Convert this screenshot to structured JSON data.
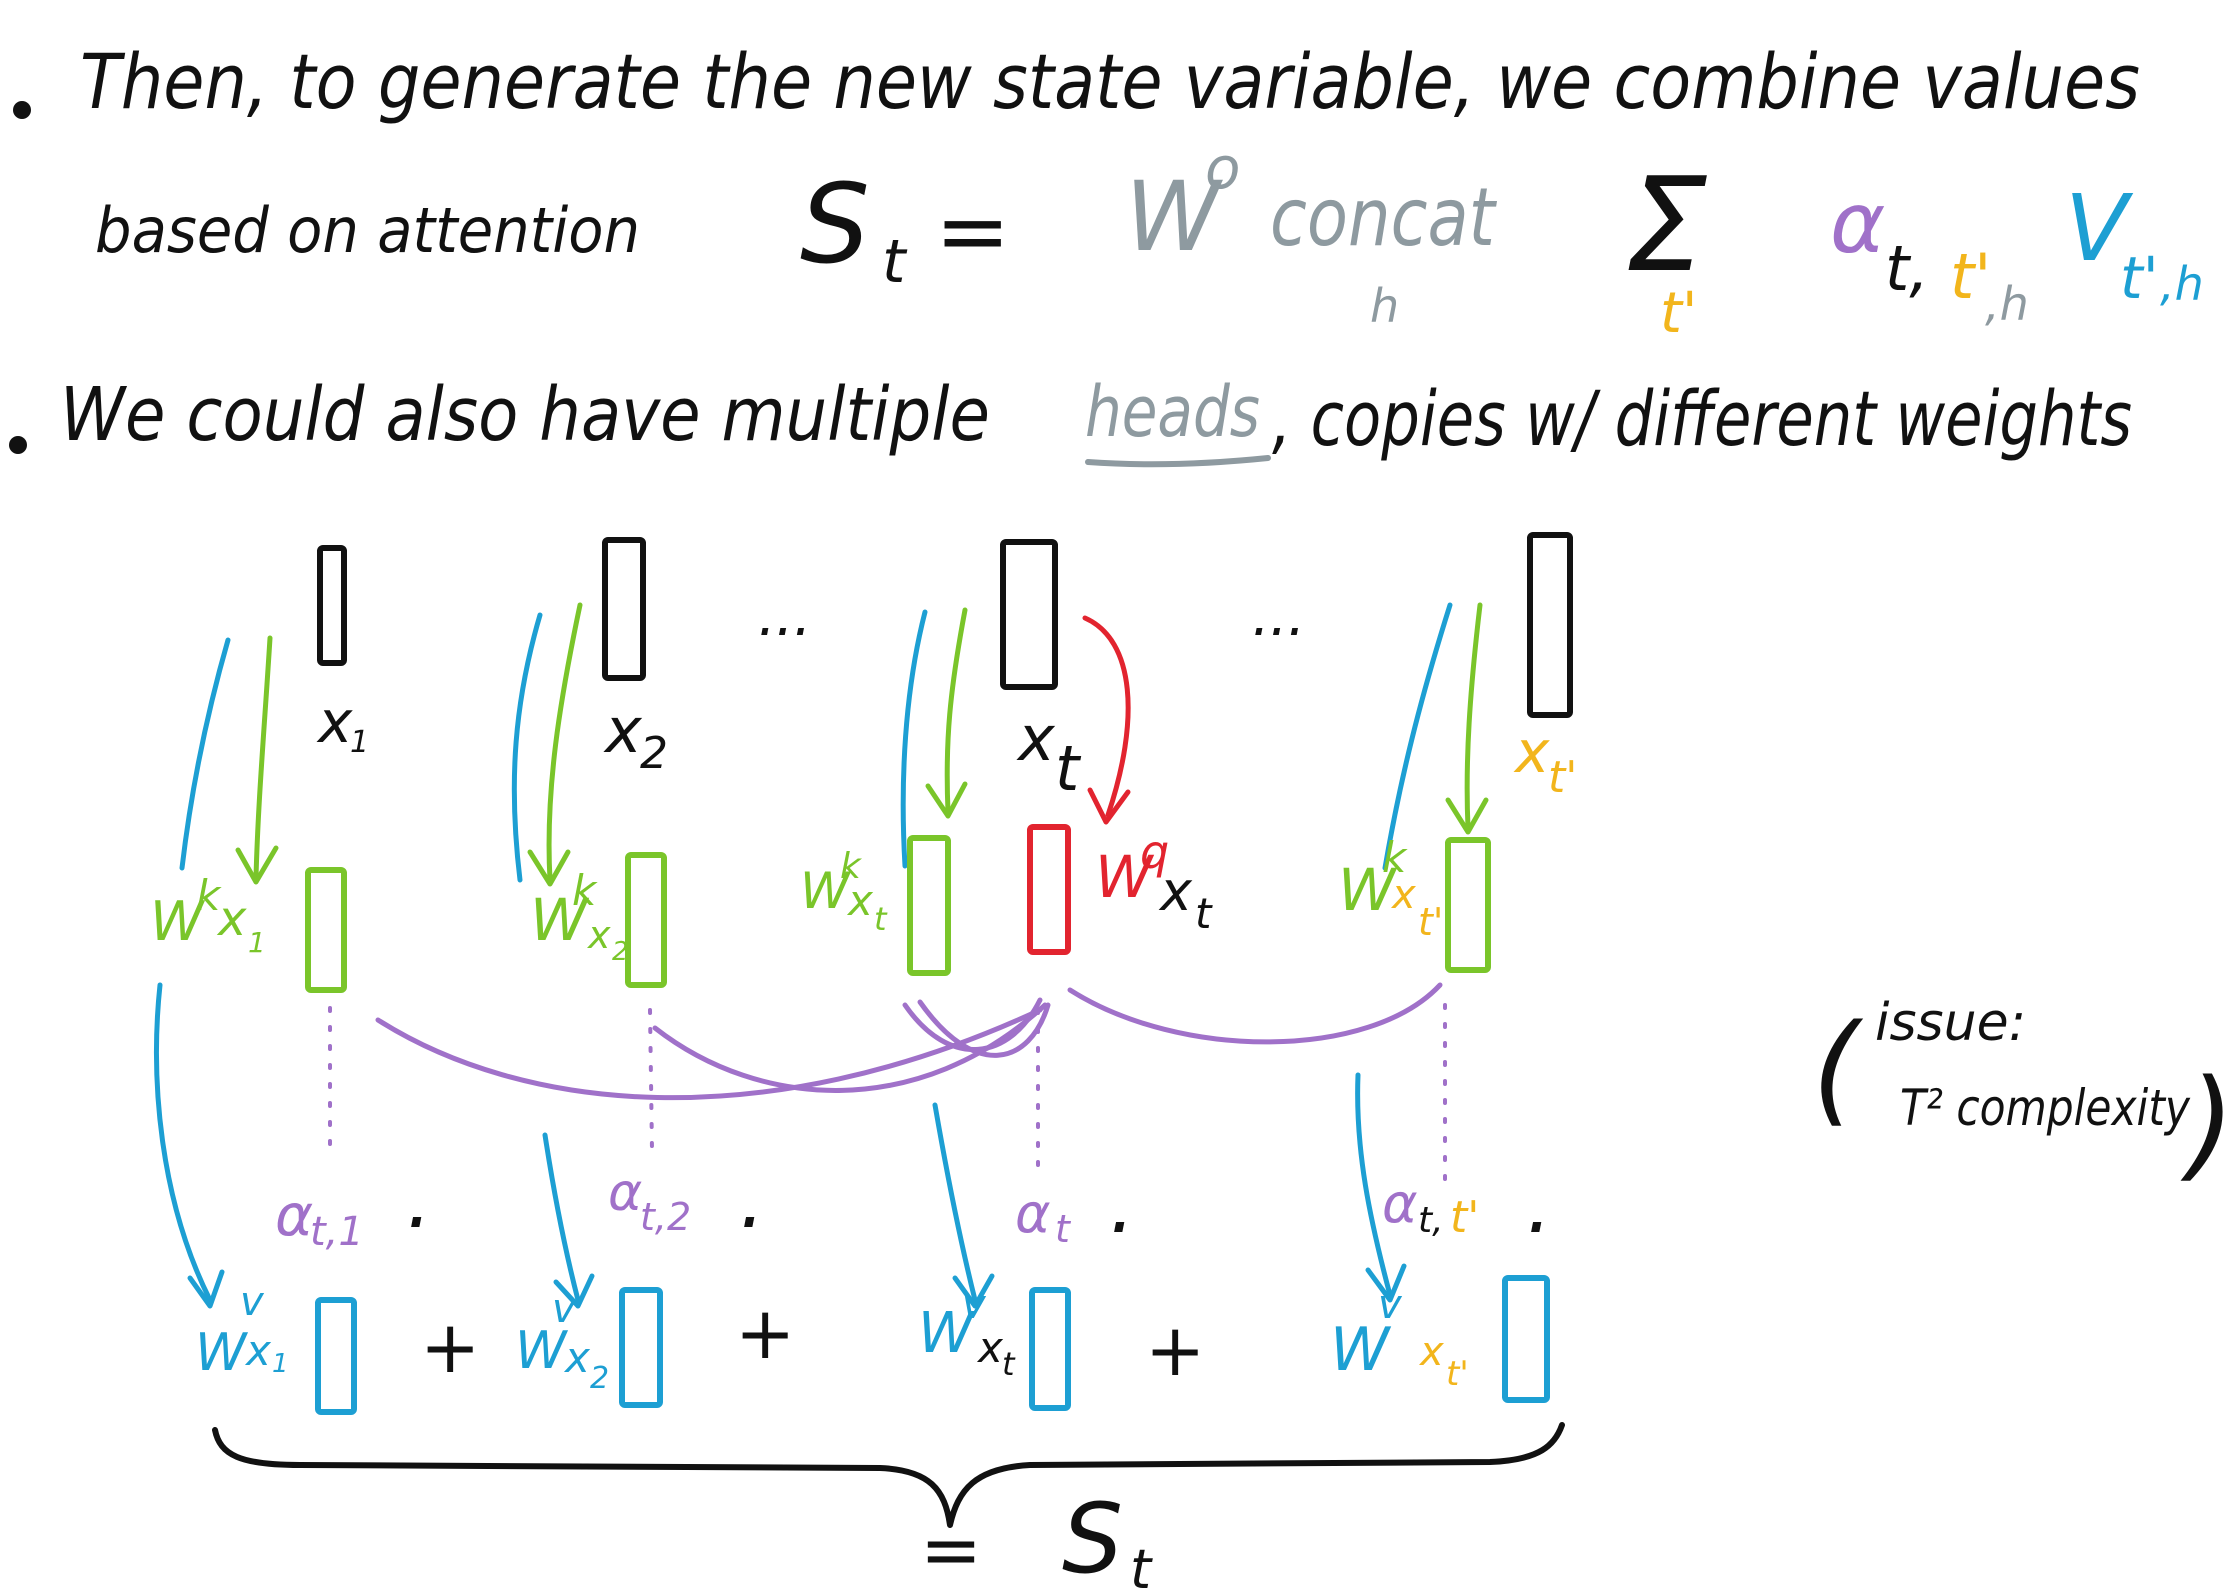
{
  "colors": {
    "black": "#111111",
    "gray": "#8e9aa0",
    "purple": "#a071c9",
    "orange": "#f2b51c",
    "blue": "#1d9fd3",
    "green": "#7ac52a",
    "red": "#e2242f"
  },
  "notes": {
    "line1": "Then, to generate the new state variable, we combine values",
    "line2_lead": "based on attention",
    "line3_lead": "We could also have multiple",
    "line3_heads": "heads",
    "line3_tail": ", copies w/ different weights"
  },
  "formula": {
    "lhs": "S",
    "lhs_sub": "t",
    "equals": "=",
    "w": "W",
    "w_sup": "o",
    "concat": "concat",
    "concat_sub": "h",
    "sum": "Σ",
    "sum_sub": "t'",
    "alpha": "α",
    "alpha_sub_t": "t,",
    "alpha_sub_tp": "t'",
    "alpha_sub_h": ",h",
    "v": "V",
    "v_sub_tp": "t'",
    "v_sub_h": ",h"
  },
  "diagram": {
    "inputs": [
      {
        "label": "x",
        "sub": "1"
      },
      {
        "label": "x",
        "sub": "2"
      },
      {
        "label": "x",
        "sub": "t"
      },
      {
        "label": "x",
        "sub": "t'"
      }
    ],
    "ellipsis": "...",
    "keys": [
      {
        "w": "W",
        "sup": "k",
        "x": "x",
        "sub": "1"
      },
      {
        "w": "W",
        "sup": "k",
        "x": "x",
        "sub": "2"
      },
      {
        "w": "W",
        "sup": "k",
        "x": "x",
        "sub": "t"
      },
      {
        "w": "W",
        "sup": "k",
        "x": "x",
        "sub": "t'"
      }
    ],
    "query": {
      "w": "W",
      "sup": "q",
      "x": "x",
      "sub": "t"
    },
    "weights": [
      {
        "alpha": "α",
        "sub": "t,1"
      },
      {
        "alpha": "α",
        "sub": "t,2"
      },
      {
        "alpha": "α",
        "sub": "t"
      },
      {
        "alpha": "α",
        "sub_a": "t,",
        "sub_b": "t'"
      }
    ],
    "dot": "·",
    "values": [
      {
        "w": "W",
        "sup": "v",
        "x": "x",
        "sub": "1"
      },
      {
        "w": "W",
        "sup": "v",
        "x": "x",
        "sub": "2"
      },
      {
        "w": "W",
        "sup": "v",
        "x": "x",
        "sub": "t"
      },
      {
        "w": "W",
        "sup": "v",
        "x": "x",
        "sub": "t'"
      }
    ],
    "plus": "+",
    "result_equals": "=",
    "result_s": "S",
    "result_sub": "t"
  },
  "aside": {
    "paren_open": "(",
    "line1": "issue:",
    "line2": "T² complexity",
    "paren_close": ")"
  }
}
